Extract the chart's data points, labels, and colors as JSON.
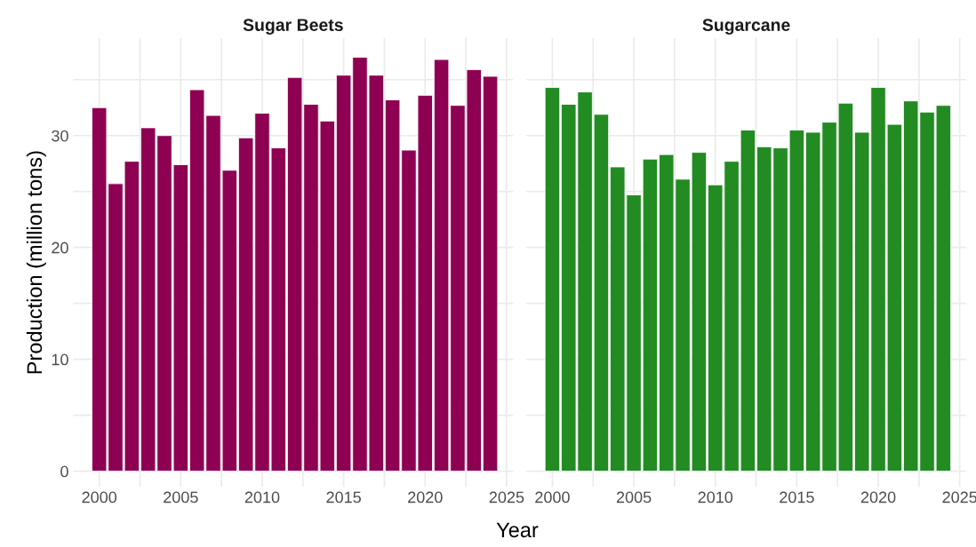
{
  "chart_data": [
    {
      "type": "bar",
      "title": "Sugar Beets",
      "xlabel": "Year",
      "ylabel": "Production (million tons)",
      "x": [
        2000,
        2001,
        2002,
        2003,
        2004,
        2005,
        2006,
        2007,
        2008,
        2009,
        2010,
        2011,
        2012,
        2013,
        2014,
        2015,
        2016,
        2017,
        2018,
        2019,
        2020,
        2021,
        2022,
        2023,
        2024
      ],
      "values": [
        32.5,
        25.7,
        27.7,
        30.7,
        30.0,
        27.4,
        34.1,
        31.8,
        26.9,
        29.8,
        32.0,
        28.9,
        35.2,
        32.8,
        31.3,
        35.4,
        37.0,
        35.4,
        33.2,
        28.7,
        33.6,
        36.8,
        32.7,
        35.9,
        35.3
      ],
      "color": "#8e0152",
      "xlim": [
        1998.4,
        2025.4
      ],
      "ylim": [
        -1.4,
        38.7
      ],
      "xticks": [
        2000,
        {
          "value": 2002.5,
          "label": null
        },
        2005,
        {
          "value": 2007.5,
          "label": null
        },
        2010,
        {
          "value": 2012.5,
          "label": null
        },
        2015,
        {
          "value": 2017.5,
          "label": null
        },
        2020,
        {
          "value": 2022.5,
          "label": null
        },
        2025
      ],
      "yticks": [
        0,
        {
          "value": 5,
          "label": null
        },
        10,
        {
          "value": 15,
          "label": null
        },
        20,
        {
          "value": 25,
          "label": null
        },
        30,
        {
          "value": 35,
          "label": null
        }
      ],
      "grid": true
    },
    {
      "type": "bar",
      "title": "Sugarcane",
      "x": [
        2000,
        2001,
        2002,
        2003,
        2004,
        2005,
        2006,
        2007,
        2008,
        2009,
        2010,
        2011,
        2012,
        2013,
        2014,
        2015,
        2016,
        2017,
        2018,
        2019,
        2020,
        2021,
        2022,
        2023,
        2024
      ],
      "values": [
        34.3,
        32.8,
        33.9,
        31.9,
        27.2,
        24.7,
        27.9,
        28.3,
        26.1,
        28.5,
        25.6,
        27.7,
        30.5,
        29.0,
        28.9,
        30.5,
        30.3,
        31.2,
        32.9,
        30.3,
        34.3,
        31.0,
        33.1,
        32.1,
        32.7
      ],
      "color": "#228b22",
      "xlim": [
        1998.4,
        2025.4
      ],
      "ylim": [
        -1.4,
        38.7
      ],
      "xticks": [
        2000,
        {
          "value": 2002.5,
          "label": null
        },
        2005,
        {
          "value": 2007.5,
          "label": null
        },
        2010,
        {
          "value": 2012.5,
          "label": null
        },
        2015,
        {
          "value": 2017.5,
          "label": null
        },
        2020,
        {
          "value": 2022.5,
          "label": null
        },
        2025
      ],
      "yticks": [
        0,
        {
          "value": 5,
          "label": null
        },
        10,
        {
          "value": 15,
          "label": null
        },
        20,
        {
          "value": 25,
          "label": null
        },
        30,
        {
          "value": 35,
          "label": null
        }
      ],
      "grid": true,
      "tick_labels": "x"
    }
  ]
}
